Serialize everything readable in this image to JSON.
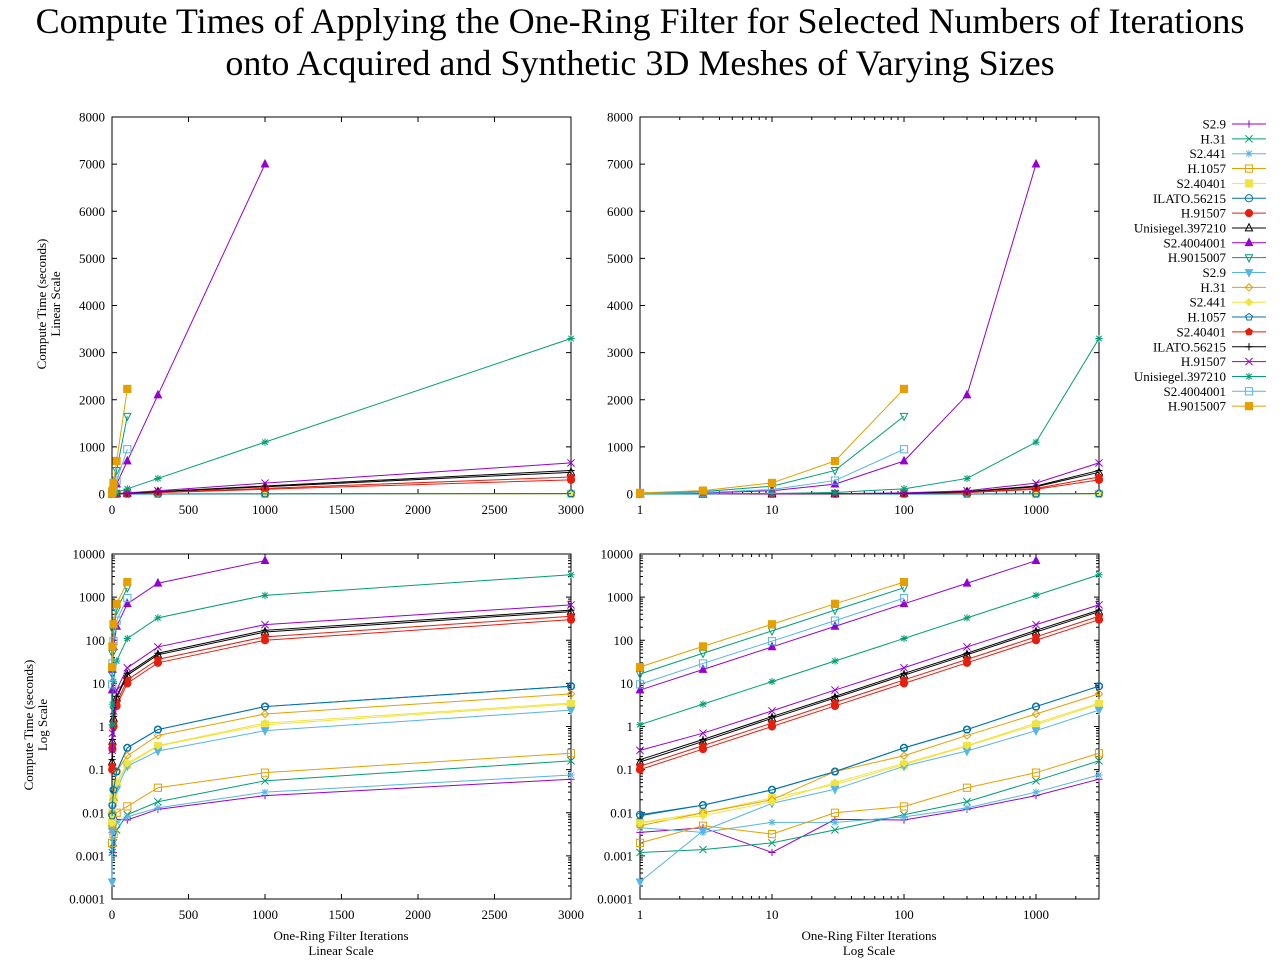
{
  "title": {
    "line1": "Compute Times of Applying the One-Ring Filter for Selected Numbers of Iterations",
    "line2": "onto Acquired and Synthetic 3D Meshes of Varying Sizes"
  },
  "axis_text": {
    "y_top": [
      "Compute Time (seconds)",
      "Linear Scale"
    ],
    "y_bottom": [
      "Compute Time (seconds)",
      "Log Scale"
    ],
    "x_left": [
      "One-Ring Filter Iterations",
      "Linear Scale"
    ],
    "x_right": [
      "One-Ring Filter Iterations",
      "Log Scale"
    ]
  },
  "chart_data": {
    "type": "line",
    "x": [
      1,
      3,
      10,
      30,
      100,
      300,
      1000,
      3000
    ],
    "panels": [
      {
        "position": "top-left",
        "xscale": "linear",
        "yscale": "linear",
        "xlim": [
          0,
          3000
        ],
        "ylim": [
          0,
          8000
        ],
        "xticks": [
          0,
          500,
          1000,
          1500,
          2000,
          2500,
          3000
        ],
        "xtick_labels": [
          "0",
          "500",
          "1000",
          "1500",
          "2000",
          "2500",
          "3000"
        ],
        "yticks": [
          0,
          1000,
          2000,
          3000,
          4000,
          5000,
          6000,
          7000,
          8000
        ],
        "ytick_labels": [
          "0",
          "1000",
          "2000",
          "3000",
          "4000",
          "5000",
          "6000",
          "7000",
          "8000"
        ]
      },
      {
        "position": "top-right",
        "xscale": "log",
        "yscale": "linear",
        "xlim": [
          1,
          3000
        ],
        "ylim": [
          0,
          8000
        ],
        "xticks": [
          1,
          10,
          100,
          1000
        ],
        "xtick_labels": [
          "1",
          "10",
          "100",
          "1000"
        ],
        "yticks": [
          0,
          1000,
          2000,
          3000,
          4000,
          5000,
          6000,
          7000,
          8000
        ],
        "ytick_labels": [
          "0",
          "1000",
          "2000",
          "3000",
          "4000",
          "5000",
          "6000",
          "7000",
          "8000"
        ]
      },
      {
        "position": "bottom-left",
        "xscale": "linear",
        "yscale": "log",
        "xlim": [
          0,
          3000
        ],
        "ylim": [
          0.0001,
          10000
        ],
        "xticks": [
          0,
          500,
          1000,
          1500,
          2000,
          2500,
          3000
        ],
        "xtick_labels": [
          "0",
          "500",
          "1000",
          "1500",
          "2000",
          "2500",
          "3000"
        ],
        "yticks": [
          0.0001,
          0.001,
          0.01,
          0.1,
          1,
          10,
          100,
          1000,
          10000
        ],
        "ytick_labels": [
          "0.0001",
          "0.001",
          "0.01",
          "0.1",
          "1",
          "10",
          "100",
          "1000",
          "10000"
        ]
      },
      {
        "position": "bottom-right",
        "xscale": "log",
        "yscale": "log",
        "xlim": [
          1,
          3000
        ],
        "ylim": [
          0.0001,
          10000
        ],
        "xticks": [
          1,
          10,
          100,
          1000
        ],
        "xtick_labels": [
          "1",
          "10",
          "100",
          "1000"
        ],
        "yticks": [
          0.0001,
          0.001,
          0.01,
          0.1,
          1,
          10,
          100,
          1000,
          10000
        ],
        "ytick_labels": [
          "0.0001",
          "0.001",
          "0.01",
          "0.1",
          "1",
          "10",
          "100",
          "1000",
          "10000"
        ]
      }
    ],
    "legend_position": "right",
    "series": [
      {
        "name": "S2.9",
        "color": "#9400d3",
        "marker": "plus",
        "values": [
          0.0035,
          0.0045,
          0.0012,
          0.007,
          0.0068,
          0.012,
          0.025,
          0.06
        ]
      },
      {
        "name": "H.31",
        "color": "#009e73",
        "marker": "cross",
        "values": [
          0.0012,
          0.0014,
          0.002,
          0.004,
          0.009,
          0.018,
          0.055,
          0.16
        ]
      },
      {
        "name": "S2.441",
        "color": "#56b4e9",
        "marker": "star",
        "values": [
          0.0045,
          0.0035,
          0.006,
          0.006,
          0.008,
          0.013,
          0.03,
          0.075
        ]
      },
      {
        "name": "H.1057",
        "color": "#e69f00",
        "marker": "open-square",
        "values": [
          0.002,
          0.005,
          0.0032,
          0.01,
          0.014,
          0.038,
          0.085,
          0.24
        ]
      },
      {
        "name": "S2.40401",
        "color": "#f0e442",
        "marker": "filled-square",
        "values": [
          0.006,
          0.01,
          0.022,
          0.045,
          0.13,
          0.35,
          1.1,
          3.3
        ]
      },
      {
        "name": "ILATO.56215",
        "color": "#0072b2",
        "marker": "open-circle",
        "values": [
          0.009,
          0.015,
          0.034,
          0.09,
          0.32,
          0.85,
          2.9,
          8.6
        ]
      },
      {
        "name": "H.91507",
        "color": "#e51e10",
        "marker": "filled-circle",
        "values": [
          0.1,
          0.3,
          1,
          3,
          10,
          30,
          100,
          300
        ]
      },
      {
        "name": "Unisiegel.397210",
        "color": "#000000",
        "marker": "open-triangle",
        "values": [
          0.15,
          0.45,
          1.55,
          4.6,
          15.5,
          46,
          155,
          460
        ]
      },
      {
        "name": "S2.4004001",
        "color": "#9400d3",
        "marker": "filled-triangle",
        "values": [
          7,
          21,
          70,
          210,
          700,
          2100,
          7000,
          null
        ]
      },
      {
        "name": "H.9015007",
        "color": "#009e73",
        "marker": "open-inv-triangle",
        "values": [
          16.5,
          50,
          165,
          500,
          1650,
          null,
          null,
          null
        ]
      },
      {
        "name": "S2.9",
        "color": "#56b4e9",
        "marker": "filled-inv-triangle",
        "values": [
          0.00025,
          0.0038,
          0.0165,
          0.035,
          0.12,
          0.27,
          0.8,
          2.4
        ]
      },
      {
        "name": "H.31",
        "color": "#e69f00",
        "marker": "open-diamond",
        "values": [
          0.005,
          0.01,
          0.02,
          0.09,
          0.21,
          0.62,
          1.95,
          5.7
        ]
      },
      {
        "name": "S2.441",
        "color": "#f0e442",
        "marker": "filled-diamond",
        "values": [
          0.0058,
          0.0085,
          0.018,
          0.05,
          0.14,
          0.36,
          1.2,
          3.5
        ]
      },
      {
        "name": "H.1057",
        "color": "#0072b2",
        "marker": "open-pentagon",
        "values": [
          0.0085,
          0.015,
          0.034,
          0.09,
          0.32,
          0.85,
          2.9,
          8.6
        ]
      },
      {
        "name": "S2.40401",
        "color": "#e51e10",
        "marker": "filled-pentagon",
        "values": [
          0.12,
          0.36,
          1.2,
          3.6,
          12,
          36,
          120,
          360
        ]
      },
      {
        "name": "ILATO.56215",
        "color": "#000000",
        "marker": "plus",
        "values": [
          0.17,
          0.5,
          1.7,
          5,
          17,
          50,
          170,
          500
        ]
      },
      {
        "name": "H.91507",
        "color": "#9400d3",
        "marker": "cross",
        "values": [
          0.28,
          0.7,
          2.3,
          7,
          23,
          70,
          230,
          660
        ]
      },
      {
        "name": "Unisiegel.397210",
        "color": "#009e73",
        "marker": "star",
        "values": [
          1.1,
          3.3,
          11,
          33,
          110,
          330,
          1100,
          3300
        ]
      },
      {
        "name": "S2.4004001",
        "color": "#56b4e9",
        "marker": "open-square",
        "values": [
          9.5,
          29,
          95,
          285,
          950,
          null,
          null,
          null
        ]
      },
      {
        "name": "H.9015007",
        "color": "#e69f00",
        "marker": "filled-square",
        "values": [
          24,
          72,
          235,
          700,
          2230,
          null,
          null,
          null
        ]
      }
    ]
  }
}
